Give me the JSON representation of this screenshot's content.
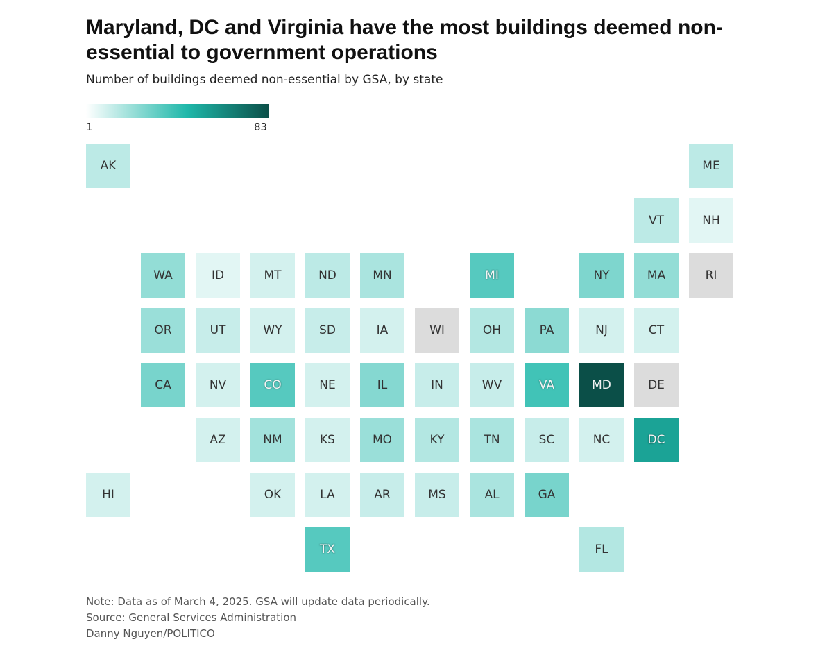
{
  "title": "Maryland, DC and Virginia have the most buildings deemed non-essential to government operations",
  "subtitle": "Number of buildings deemed non-essential by GSA, by state",
  "legend": {
    "min_label": "1",
    "max_label": "83",
    "min_color": "#ffffff",
    "mid_color": "#1fb8aa",
    "max_color": "#0b4f48"
  },
  "no_data_color": "#dcdcdc",
  "footer": {
    "note": "Note: Data as of March 4, 2025. GSA will update data periodically.",
    "source": "Source: General Services Administration",
    "credit": "Danny Nguyen/POLITICO"
  },
  "chart_data": {
    "type": "heatmap",
    "title": "Maryland, DC and Virginia have the most buildings deemed non-essential to government operations",
    "subtitle": "Number of buildings deemed non-essential by GSA, by state",
    "color_scale": {
      "min": 1,
      "max": 83
    },
    "tiles": [
      {
        "state": "AK",
        "row": 0,
        "col": 0,
        "value": 5
      },
      {
        "state": "ME",
        "row": 0,
        "col": 11,
        "value": 5
      },
      {
        "state": "VT",
        "row": 1,
        "col": 10,
        "value": 5
      },
      {
        "state": "NH",
        "row": 1,
        "col": 11,
        "value": 2
      },
      {
        "state": "WA",
        "row": 2,
        "col": 1,
        "value": 10
      },
      {
        "state": "ID",
        "row": 2,
        "col": 2,
        "value": 2
      },
      {
        "state": "MT",
        "row": 2,
        "col": 3,
        "value": 3
      },
      {
        "state": "ND",
        "row": 2,
        "col": 4,
        "value": 5
      },
      {
        "state": "MN",
        "row": 2,
        "col": 5,
        "value": 7
      },
      {
        "state": "MI",
        "row": 2,
        "col": 7,
        "value": 20
      },
      {
        "state": "NY",
        "row": 2,
        "col": 9,
        "value": 13
      },
      {
        "state": "MA",
        "row": 2,
        "col": 10,
        "value": 10
      },
      {
        "state": "RI",
        "row": 2,
        "col": 11,
        "value": null
      },
      {
        "state": "OR",
        "row": 3,
        "col": 1,
        "value": 9
      },
      {
        "state": "UT",
        "row": 3,
        "col": 2,
        "value": 4
      },
      {
        "state": "WY",
        "row": 3,
        "col": 3,
        "value": 3
      },
      {
        "state": "SD",
        "row": 3,
        "col": 4,
        "value": 4
      },
      {
        "state": "IA",
        "row": 3,
        "col": 5,
        "value": 3
      },
      {
        "state": "WI",
        "row": 3,
        "col": 6,
        "value": null
      },
      {
        "state": "OH",
        "row": 3,
        "col": 7,
        "value": 6
      },
      {
        "state": "PA",
        "row": 3,
        "col": 8,
        "value": 11
      },
      {
        "state": "NJ",
        "row": 3,
        "col": 9,
        "value": 3
      },
      {
        "state": "CT",
        "row": 3,
        "col": 10,
        "value": 3
      },
      {
        "state": "CA",
        "row": 4,
        "col": 1,
        "value": 14
      },
      {
        "state": "NV",
        "row": 4,
        "col": 2,
        "value": 3
      },
      {
        "state": "CO",
        "row": 4,
        "col": 3,
        "value": 20
      },
      {
        "state": "NE",
        "row": 4,
        "col": 4,
        "value": 3
      },
      {
        "state": "IL",
        "row": 4,
        "col": 5,
        "value": 12
      },
      {
        "state": "IN",
        "row": 4,
        "col": 6,
        "value": 4
      },
      {
        "state": "WV",
        "row": 4,
        "col": 7,
        "value": 4
      },
      {
        "state": "VA",
        "row": 4,
        "col": 8,
        "value": 24
      },
      {
        "state": "MD",
        "row": 4,
        "col": 9,
        "value": 83
      },
      {
        "state": "DE",
        "row": 4,
        "col": 10,
        "value": null
      },
      {
        "state": "AZ",
        "row": 5,
        "col": 2,
        "value": 3
      },
      {
        "state": "NM",
        "row": 5,
        "col": 3,
        "value": 8
      },
      {
        "state": "KS",
        "row": 5,
        "col": 4,
        "value": 3
      },
      {
        "state": "MO",
        "row": 5,
        "col": 5,
        "value": 9
      },
      {
        "state": "KY",
        "row": 5,
        "col": 6,
        "value": 6
      },
      {
        "state": "TN",
        "row": 5,
        "col": 7,
        "value": 7
      },
      {
        "state": "SC",
        "row": 5,
        "col": 8,
        "value": 4
      },
      {
        "state": "NC",
        "row": 5,
        "col": 9,
        "value": 3
      },
      {
        "state": "DC",
        "row": 5,
        "col": 10,
        "value": 40
      },
      {
        "state": "HI",
        "row": 6,
        "col": 0,
        "value": 3
      },
      {
        "state": "OK",
        "row": 6,
        "col": 3,
        "value": 3
      },
      {
        "state": "LA",
        "row": 6,
        "col": 4,
        "value": 3
      },
      {
        "state": "AR",
        "row": 6,
        "col": 5,
        "value": 4
      },
      {
        "state": "MS",
        "row": 6,
        "col": 6,
        "value": 4
      },
      {
        "state": "AL",
        "row": 6,
        "col": 7,
        "value": 7
      },
      {
        "state": "GA",
        "row": 6,
        "col": 8,
        "value": 14
      },
      {
        "state": "TX",
        "row": 7,
        "col": 4,
        "value": 20
      },
      {
        "state": "FL",
        "row": 7,
        "col": 9,
        "value": 6
      }
    ]
  }
}
